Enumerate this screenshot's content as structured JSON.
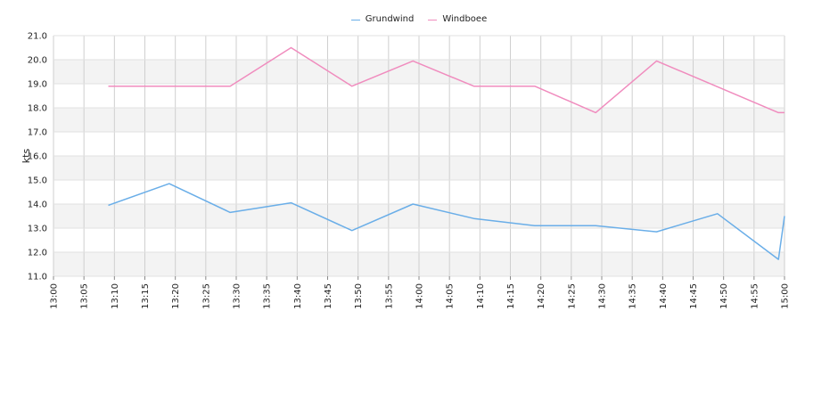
{
  "chart_data": {
    "type": "line",
    "title": "",
    "xlabel": "",
    "ylabel": "kts",
    "ylim": [
      11.0,
      21.0
    ],
    "yticks": [
      "11.0",
      "12.0",
      "13.0",
      "14.0",
      "15.0",
      "16.0",
      "17.0",
      "18.0",
      "19.0",
      "20.0",
      "21.0"
    ],
    "xticks": [
      "13:00",
      "13:05",
      "13:10",
      "13:15",
      "13:20",
      "13:25",
      "13:30",
      "13:35",
      "13:40",
      "13:45",
      "13:50",
      "13:55",
      "14:00",
      "14:05",
      "14:10",
      "14:15",
      "14:20",
      "14:25",
      "14:30",
      "14:35",
      "14:40",
      "14:45",
      "14:50",
      "14:55",
      "15:00"
    ],
    "grid": true,
    "legend_position": "top-center",
    "series": [
      {
        "name": "Grundwind",
        "color": "#6aaee8",
        "points": [
          [
            "13:09",
            13.95
          ],
          [
            "13:19",
            14.85
          ],
          [
            "13:29",
            13.65
          ],
          [
            "13:39",
            14.05
          ],
          [
            "13:49",
            12.9
          ],
          [
            "13:59",
            14.0
          ],
          [
            "14:09",
            13.4
          ],
          [
            "14:19",
            13.1
          ],
          [
            "14:29",
            13.1
          ],
          [
            "14:39",
            12.85
          ],
          [
            "14:49",
            13.6
          ],
          [
            "14:59",
            11.7
          ],
          [
            "15:00",
            13.5
          ]
        ]
      },
      {
        "name": "Windboee",
        "color": "#f08cbe",
        "points": [
          [
            "13:09",
            18.9
          ],
          [
            "13:19",
            18.9
          ],
          [
            "13:29",
            18.9
          ],
          [
            "13:39",
            20.5
          ],
          [
            "13:49",
            18.9
          ],
          [
            "13:59",
            19.95
          ],
          [
            "14:09",
            18.9
          ],
          [
            "14:19",
            18.9
          ],
          [
            "14:29",
            17.8
          ],
          [
            "14:39",
            19.95
          ],
          [
            "14:59",
            17.8
          ],
          [
            "15:00",
            17.8
          ]
        ]
      }
    ]
  }
}
